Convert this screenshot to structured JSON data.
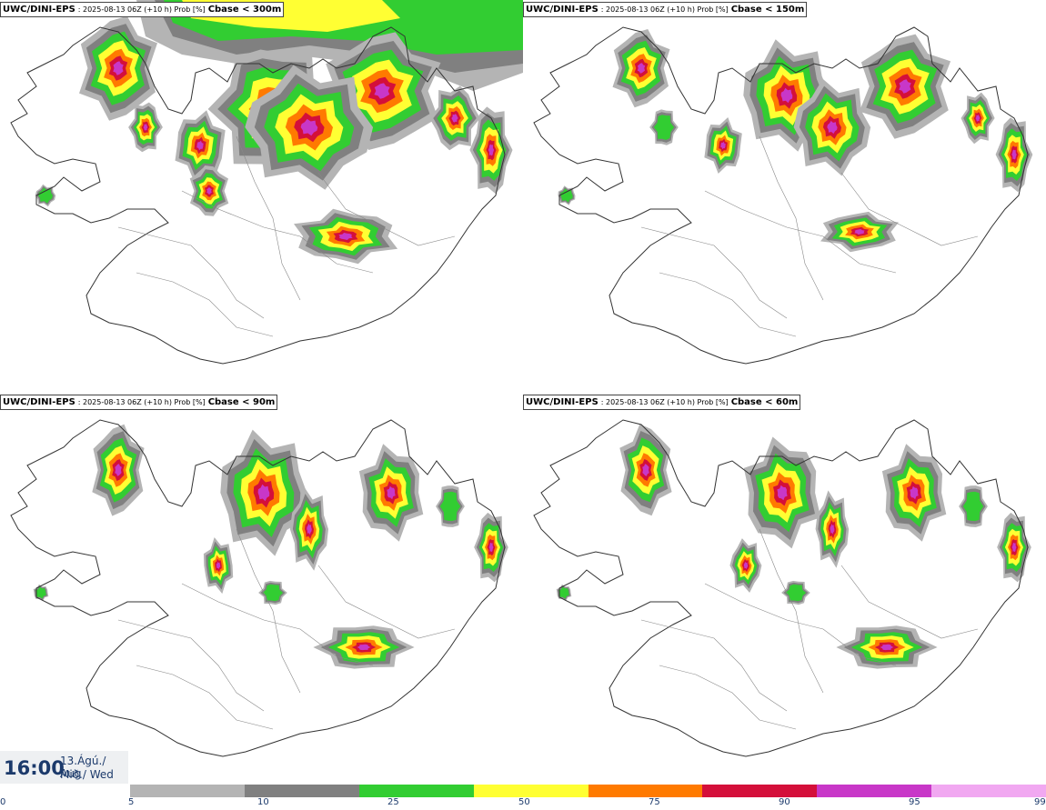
{
  "panels": [
    {
      "source": "UWC/DINI-EPS",
      "meta": ": 2025-08-13 06Z (+10 h) Prob [%]",
      "threshold": "Cbase < 300m"
    },
    {
      "source": "UWC/DINI-EPS",
      "meta": ": 2025-08-13 06Z (+10 h) Prob [%]",
      "threshold": "Cbase < 150m"
    },
    {
      "source": "UWC/DINI-EPS",
      "meta": ": 2025-08-13 06Z (+10 h) Prob [%]",
      "threshold": "Cbase < 90m"
    },
    {
      "source": "UWC/DINI-EPS",
      "meta": ": 2025-08-13 06Z (+10 h) Prob [%]",
      "threshold": "Cbase < 60m"
    }
  ],
  "time": {
    "clock": "16:00",
    "date_line1": "13.Ágú./ Aug",
    "date_line2": "Mið./ Wed"
  },
  "legend": {
    "ticks": [
      "0",
      "5",
      "10",
      "25",
      "50",
      "75",
      "90",
      "95",
      "99"
    ],
    "colors": [
      "#b4b4b4",
      "#808080",
      "#32cd32",
      "#ffff33",
      "#ff7a00",
      "#d40f3a",
      "#c837c8",
      "#f1a8f1"
    ]
  }
}
